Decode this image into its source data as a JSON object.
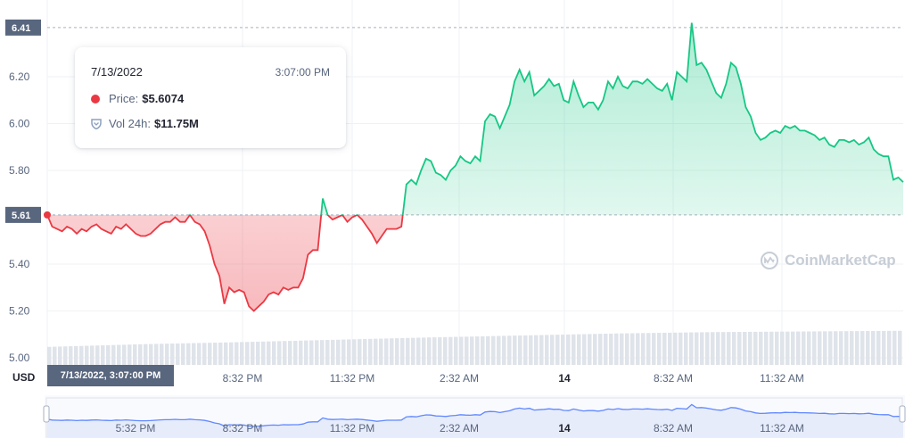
{
  "chart_data": {
    "type": "line",
    "x_labels": [
      "8:32 PM",
      "11:32 PM",
      "2:32 AM",
      "14",
      "8:32 AM",
      "11:32 AM"
    ],
    "navigator_x_labels": [
      "5:32 PM",
      "8:32 PM",
      "11:32 PM",
      "2:32 AM",
      "14",
      "8:32 AM",
      "11:32 AM"
    ],
    "y_ticks": [
      "6.20",
      "6.00",
      "5.80",
      "5.40",
      "5.20",
      "5.00"
    ],
    "ylim": [
      5.0,
      6.5
    ],
    "baseline": 5.61,
    "baseline_label": "5.61",
    "max_label": "6.41",
    "crosshair_label": "7/13/2022, 3:07:00 PM",
    "currency_label": "USD",
    "color_up": "#16c784",
    "color_down": "#ea3943",
    "prices": [
      5.61,
      5.56,
      5.55,
      5.54,
      5.56,
      5.55,
      5.53,
      5.55,
      5.54,
      5.56,
      5.57,
      5.55,
      5.54,
      5.53,
      5.56,
      5.55,
      5.57,
      5.55,
      5.53,
      5.52,
      5.52,
      5.53,
      5.55,
      5.57,
      5.58,
      5.58,
      5.6,
      5.58,
      5.58,
      5.61,
      5.58,
      5.57,
      5.54,
      5.48,
      5.4,
      5.35,
      5.23,
      5.3,
      5.28,
      5.29,
      5.28,
      5.22,
      5.2,
      5.22,
      5.24,
      5.27,
      5.28,
      5.27,
      5.3,
      5.29,
      5.3,
      5.3,
      5.34,
      5.44,
      5.46,
      5.46,
      5.68,
      5.61,
      5.59,
      5.6,
      5.61,
      5.58,
      5.6,
      5.61,
      5.59,
      5.56,
      5.53,
      5.49,
      5.52,
      5.55,
      5.55,
      5.55,
      5.56,
      5.74,
      5.76,
      5.74,
      5.8,
      5.85,
      5.84,
      5.79,
      5.78,
      5.76,
      5.8,
      5.82,
      5.86,
      5.84,
      5.83,
      5.86,
      5.84,
      6.01,
      6.04,
      6.03,
      5.98,
      6.03,
      6.08,
      6.18,
      6.23,
      6.18,
      6.22,
      6.12,
      6.14,
      6.16,
      6.19,
      6.16,
      6.17,
      6.1,
      6.09,
      6.18,
      6.12,
      6.07,
      6.09,
      6.09,
      6.06,
      6.1,
      6.18,
      6.15,
      6.2,
      6.16,
      6.15,
      6.18,
      6.18,
      6.17,
      6.19,
      6.17,
      6.15,
      6.14,
      6.17,
      6.1,
      6.22,
      6.2,
      6.18,
      6.43,
      6.25,
      6.26,
      6.23,
      6.18,
      6.13,
      6.11,
      6.17,
      6.26,
      6.24,
      6.17,
      6.07,
      6.03,
      5.96,
      5.93,
      5.94,
      5.96,
      5.97,
      5.96,
      5.99,
      5.98,
      5.99,
      5.97,
      5.97,
      5.96,
      5.95,
      5.93,
      5.94,
      5.91,
      5.9,
      5.93,
      5.93,
      5.92,
      5.93,
      5.91,
      5.92,
      5.94,
      5.89,
      5.87,
      5.86,
      5.86,
      5.76,
      5.77,
      5.75
    ],
    "volume_bars": 160,
    "volume_profile": [
      0.34,
      0.42,
      0.48,
      0.55,
      0.62,
      0.68,
      0.74,
      0.78,
      0.8,
      0.82
    ],
    "tooltip": {
      "date": "7/13/2022",
      "time": "3:07:00 PM",
      "price_label": "Price:",
      "price_value": "$5.6074",
      "vol_label": "Vol 24h:",
      "vol_value": "$11.75M"
    },
    "watermark": "CoinMarketCap"
  }
}
